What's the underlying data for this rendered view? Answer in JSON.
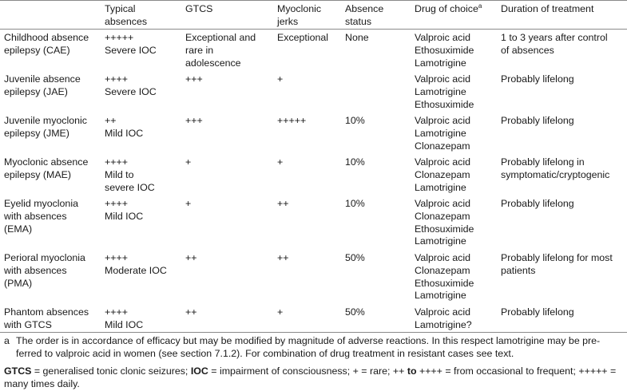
{
  "header": {
    "syndrome": "",
    "typical_absences": [
      "Typical",
      "absences"
    ],
    "gtcs": "GTCS",
    "myoclonic_jerks": [
      "Myoclonic",
      "jerks"
    ],
    "absence_status": [
      "Absence",
      "status"
    ],
    "drug_of_choice": "Drug of choice",
    "drug_of_choice_sup": "a",
    "duration": "Duration of treatment"
  },
  "rows": [
    {
      "syndrome": [
        "Childhood absence",
        "epilepsy (CAE)"
      ],
      "typical_absences": [
        "+++++",
        "Severe IOC"
      ],
      "gtcs": [
        "Exceptional and",
        "rare in",
        "adolescence"
      ],
      "myoclonic_jerks": [
        "Exceptional"
      ],
      "absence_status": [
        "None"
      ],
      "drugs": [
        "Valproic acid",
        "Ethosuximide",
        "Lamotrigine"
      ],
      "duration": [
        "1 to 3 years after control",
        "of absences"
      ]
    },
    {
      "syndrome": [
        "Juvenile absence",
        "epilepsy (JAE)"
      ],
      "typical_absences": [
        "++++",
        "Severe IOC"
      ],
      "gtcs": [
        "+++"
      ],
      "myoclonic_jerks": [
        "+"
      ],
      "absence_status": [
        ""
      ],
      "drugs": [
        "Valproic acid",
        "Lamotrigine",
        "Ethosuximide"
      ],
      "duration": [
        "Probably lifelong"
      ]
    },
    {
      "syndrome": [
        "Juvenile myoclonic",
        "epilepsy (JME)"
      ],
      "typical_absences": [
        "++",
        "Mild IOC"
      ],
      "gtcs": [
        "+++"
      ],
      "myoclonic_jerks": [
        "+++++"
      ],
      "absence_status": [
        "10%"
      ],
      "drugs": [
        "Valproic acid",
        "Lamotrigine",
        "Clonazepam"
      ],
      "duration": [
        "Probably lifelong"
      ]
    },
    {
      "syndrome": [
        "Myoclonic absence",
        "epilepsy (MAE)"
      ],
      "typical_absences": [
        "++++",
        "Mild to",
        "severe IOC"
      ],
      "gtcs": [
        "+"
      ],
      "myoclonic_jerks": [
        "+"
      ],
      "absence_status": [
        "10%"
      ],
      "drugs": [
        "Valproic acid",
        "Clonazepam",
        "Lamotrigine"
      ],
      "duration": [
        "Probably lifelong in",
        "symptomatic/cryptogenic"
      ]
    },
    {
      "syndrome": [
        "Eyelid myoclonia",
        "with absences",
        "(EMA)"
      ],
      "typical_absences": [
        "++++",
        "Mild IOC"
      ],
      "gtcs": [
        "+"
      ],
      "myoclonic_jerks": [
        "++"
      ],
      "absence_status": [
        "10%"
      ],
      "drugs": [
        "Valproic acid",
        "Clonazepam",
        "Ethosuximide",
        "Lamotrigine"
      ],
      "duration": [
        "Probably lifelong"
      ]
    },
    {
      "syndrome": [
        "Perioral myoclonia",
        "with absences",
        "(PMA)"
      ],
      "typical_absences": [
        "++++",
        "Moderate IOC"
      ],
      "gtcs": [
        "++"
      ],
      "myoclonic_jerks": [
        "++"
      ],
      "absence_status": [
        "50%"
      ],
      "drugs": [
        "Valproic acid",
        "Clonazepam",
        "Ethosuximide",
        "Lamotrigine"
      ],
      "duration": [
        "Probably lifelong for most",
        "patients"
      ]
    },
    {
      "syndrome": [
        "Phantom absences",
        "with GTCS"
      ],
      "typical_absences": [
        "++++",
        "Mild IOC"
      ],
      "gtcs": [
        "++"
      ],
      "myoclonic_jerks": [
        "+"
      ],
      "absence_status": [
        "50%"
      ],
      "drugs": [
        "Valproic acid",
        "Lamotrigine?"
      ],
      "duration": [
        "Probably lifelong"
      ]
    }
  ],
  "footnote_a": {
    "mark": "a",
    "lines": [
      "The order is in accordance of efficacy but may be modified by magnitude of adverse reactions. In this respect lamotrigine may be pre-",
      "ferred to valproic acid in women (see section 7.1.2). For combination of drug treatment in resistant cases see text."
    ]
  },
  "legend": {
    "gtcs_term": "GTCS",
    "gtcs_def": " = generalised tonic clonic seizures; ",
    "ioc_term": "IOC",
    "ioc_def": " = impairment of consciousness; + = rare; ++ ",
    "to_word": "to",
    "range_def": " ++++ = from occasional to frequent; +++++ =",
    "line2": "many times daily."
  }
}
